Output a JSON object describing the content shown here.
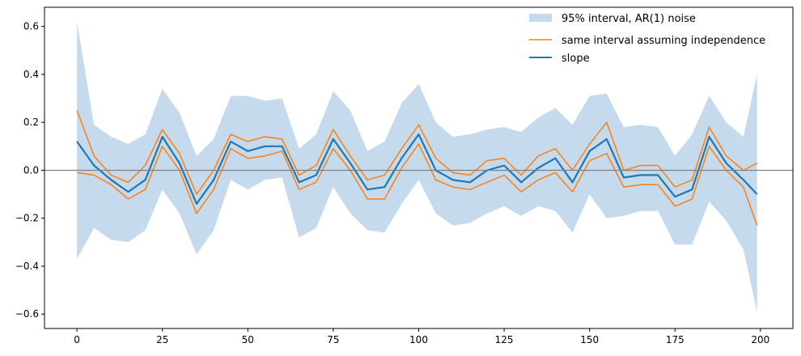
{
  "chart_data": {
    "type": "line",
    "title": "",
    "xlabel": "",
    "ylabel": "",
    "xlim": [
      -9.5,
      209.5
    ],
    "ylim": [
      -0.66,
      0.68
    ],
    "xticks": [
      0,
      25,
      50,
      75,
      100,
      125,
      150,
      175,
      200
    ],
    "yticks": [
      -0.6,
      -0.4,
      -0.2,
      0.0,
      0.2,
      0.4,
      0.6
    ],
    "xtick_labels": [
      "0",
      "25",
      "50",
      "75",
      "100",
      "125",
      "150",
      "175",
      "200"
    ],
    "ytick_labels": [
      "−0.6",
      "−0.4",
      "−0.2",
      "0.0",
      "0.2",
      "0.4",
      "0.6"
    ],
    "grid": false,
    "legend_position": "top-right",
    "reference_line": {
      "y": 0.0,
      "color": "#808080"
    },
    "x": [
      0,
      5,
      10,
      15,
      20,
      25,
      30,
      35,
      40,
      45,
      50,
      55,
      60,
      65,
      70,
      75,
      80,
      85,
      90,
      95,
      100,
      105,
      110,
      115,
      120,
      125,
      130,
      135,
      140,
      145,
      150,
      155,
      160,
      165,
      170,
      175,
      180,
      185,
      190,
      195,
      199
    ],
    "series": [
      {
        "name": "95% interval, AR(1) noise",
        "kind": "band",
        "color": "#c5daec",
        "lower": [
          -0.37,
          -0.24,
          -0.29,
          -0.3,
          -0.25,
          -0.08,
          -0.18,
          -0.35,
          -0.25,
          -0.04,
          -0.08,
          -0.04,
          -0.03,
          -0.28,
          -0.24,
          -0.07,
          -0.18,
          -0.25,
          -0.26,
          -0.14,
          -0.04,
          -0.18,
          -0.23,
          -0.22,
          -0.18,
          -0.15,
          -0.19,
          -0.15,
          -0.17,
          -0.26,
          -0.1,
          -0.2,
          -0.19,
          -0.17,
          -0.17,
          -0.31,
          -0.31,
          -0.13,
          -0.21,
          -0.33,
          -0.59
        ],
        "upper": [
          0.62,
          0.19,
          0.14,
          0.11,
          0.15,
          0.34,
          0.24,
          0.06,
          0.13,
          0.31,
          0.31,
          0.29,
          0.3,
          0.09,
          0.15,
          0.33,
          0.25,
          0.08,
          0.12,
          0.28,
          0.36,
          0.2,
          0.14,
          0.15,
          0.17,
          0.18,
          0.16,
          0.22,
          0.26,
          0.19,
          0.31,
          0.32,
          0.18,
          0.19,
          0.18,
          0.06,
          0.15,
          0.31,
          0.2,
          0.14,
          0.4
        ]
      },
      {
        "name": "same interval assuming independence",
        "kind": "interval-lines",
        "color": "#ff7f0e",
        "lower": [
          -0.01,
          -0.02,
          -0.06,
          -0.12,
          -0.08,
          0.1,
          0.0,
          -0.18,
          -0.08,
          0.09,
          0.05,
          0.06,
          0.08,
          -0.08,
          -0.05,
          0.09,
          0.0,
          -0.12,
          -0.12,
          0.01,
          0.11,
          -0.04,
          -0.07,
          -0.08,
          -0.05,
          -0.02,
          -0.09,
          -0.04,
          -0.01,
          -0.09,
          0.04,
          0.07,
          -0.07,
          -0.06,
          -0.06,
          -0.15,
          -0.12,
          0.1,
          0.0,
          -0.07,
          -0.23
        ],
        "upper": [
          0.25,
          0.06,
          -0.02,
          -0.05,
          0.02,
          0.17,
          0.07,
          -0.1,
          0.0,
          0.15,
          0.12,
          0.14,
          0.13,
          -0.02,
          0.02,
          0.17,
          0.06,
          -0.04,
          -0.02,
          0.09,
          0.19,
          0.05,
          -0.01,
          -0.02,
          0.04,
          0.05,
          -0.02,
          0.06,
          0.09,
          0.0,
          0.11,
          0.2,
          0.0,
          0.02,
          0.02,
          -0.07,
          -0.04,
          0.18,
          0.06,
          0.0,
          0.03
        ]
      },
      {
        "name": "slope",
        "kind": "line",
        "color": "#1f77b4",
        "values": [
          0.12,
          0.02,
          -0.04,
          -0.09,
          -0.04,
          0.14,
          0.03,
          -0.14,
          -0.04,
          0.12,
          0.08,
          0.1,
          0.1,
          -0.05,
          -0.02,
          0.13,
          0.03,
          -0.08,
          -0.07,
          0.05,
          0.15,
          0.0,
          -0.04,
          -0.05,
          0.0,
          0.02,
          -0.05,
          0.01,
          0.05,
          -0.05,
          0.08,
          0.13,
          -0.03,
          -0.02,
          -0.02,
          -0.11,
          -0.08,
          0.14,
          0.03,
          -0.04,
          -0.1
        ]
      }
    ]
  }
}
